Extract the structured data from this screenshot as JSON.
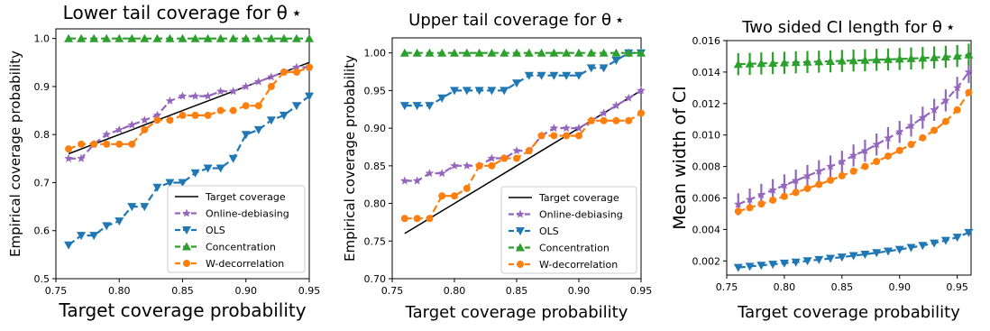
{
  "colors": {
    "target": "#000000",
    "online": "#9467bd",
    "ols": "#1f77b4",
    "concentration": "#2ca02c",
    "wdecorrelation": "#ff7f0e"
  },
  "chart_data": [
    {
      "type": "line",
      "title": "Lower tail coverage for θ ⋆",
      "xlabel": "Target coverage probability",
      "ylabel": "Empirical coverage probability",
      "xlim": [
        0.75,
        0.95
      ],
      "ylim": [
        0.5,
        1.02
      ],
      "xticks": [
        "0.75",
        "0.80",
        "0.85",
        "0.90",
        "0.95"
      ],
      "yticks": [
        "0.5",
        "0.6",
        "0.7",
        "0.8",
        "0.9",
        "1.0"
      ],
      "grid": false,
      "legend": "bottom-right",
      "x": [
        0.76,
        0.77,
        0.78,
        0.79,
        0.8,
        0.81,
        0.82,
        0.83,
        0.84,
        0.85,
        0.86,
        0.87,
        0.88,
        0.89,
        0.9,
        0.91,
        0.92,
        0.93,
        0.94,
        0.95
      ],
      "series": [
        {
          "name": "Target coverage",
          "values": [
            0.76,
            0.77,
            0.78,
            0.79,
            0.8,
            0.81,
            0.82,
            0.83,
            0.84,
            0.85,
            0.86,
            0.87,
            0.88,
            0.89,
            0.9,
            0.91,
            0.92,
            0.93,
            0.94,
            0.95
          ]
        },
        {
          "name": "Online-debiasing",
          "values": [
            0.75,
            0.75,
            0.78,
            0.8,
            0.81,
            0.82,
            0.83,
            0.84,
            0.87,
            0.88,
            0.88,
            0.88,
            0.89,
            0.89,
            0.9,
            0.91,
            0.92,
            0.93,
            0.94,
            0.94
          ]
        },
        {
          "name": "OLS",
          "values": [
            0.57,
            0.59,
            0.59,
            0.61,
            0.62,
            0.65,
            0.65,
            0.69,
            0.7,
            0.7,
            0.72,
            0.73,
            0.73,
            0.75,
            0.8,
            0.81,
            0.83,
            0.84,
            0.86,
            0.88
          ]
        },
        {
          "name": "Concentration",
          "values": [
            1.0,
            1.0,
            1.0,
            1.0,
            1.0,
            1.0,
            1.0,
            1.0,
            1.0,
            1.0,
            1.0,
            1.0,
            1.0,
            1.0,
            1.0,
            1.0,
            1.0,
            1.0,
            1.0,
            1.0
          ]
        },
        {
          "name": "W-decorrelation",
          "values": [
            0.77,
            0.78,
            0.78,
            0.78,
            0.78,
            0.78,
            0.81,
            0.83,
            0.83,
            0.84,
            0.84,
            0.84,
            0.85,
            0.85,
            0.86,
            0.86,
            0.9,
            0.93,
            0.93,
            0.94
          ]
        }
      ]
    },
    {
      "type": "line",
      "title": "Upper tail coverage for θ ⋆",
      "xlabel": "Target coverage probability",
      "ylabel": "Empirical coverage probability",
      "xlim": [
        0.75,
        0.95
      ],
      "ylim": [
        0.7,
        1.02
      ],
      "xticks": [
        "0.75",
        "0.80",
        "0.85",
        "0.90",
        "0.95"
      ],
      "yticks": [
        "0.70",
        "0.75",
        "0.80",
        "0.85",
        "0.90",
        "0.95",
        "1.00"
      ],
      "grid": false,
      "legend": "bottom-right",
      "x": [
        0.76,
        0.77,
        0.78,
        0.79,
        0.8,
        0.81,
        0.82,
        0.83,
        0.84,
        0.85,
        0.86,
        0.87,
        0.88,
        0.89,
        0.9,
        0.91,
        0.92,
        0.93,
        0.94,
        0.95
      ],
      "series": [
        {
          "name": "Target coverage",
          "values": [
            0.76,
            0.77,
            0.78,
            0.79,
            0.8,
            0.81,
            0.82,
            0.83,
            0.84,
            0.85,
            0.86,
            0.87,
            0.88,
            0.89,
            0.9,
            0.91,
            0.92,
            0.93,
            0.94,
            0.95
          ]
        },
        {
          "name": "Online-debiasing",
          "values": [
            0.83,
            0.83,
            0.84,
            0.84,
            0.85,
            0.85,
            0.85,
            0.86,
            0.86,
            0.87,
            0.87,
            0.89,
            0.9,
            0.9,
            0.9,
            0.91,
            0.92,
            0.93,
            0.94,
            0.95
          ]
        },
        {
          "name": "OLS",
          "values": [
            0.93,
            0.93,
            0.93,
            0.94,
            0.95,
            0.95,
            0.95,
            0.95,
            0.95,
            0.96,
            0.97,
            0.97,
            0.97,
            0.97,
            0.97,
            0.98,
            0.98,
            0.99,
            1.0,
            1.0
          ]
        },
        {
          "name": "Concentration",
          "values": [
            1.0,
            1.0,
            1.0,
            1.0,
            1.0,
            1.0,
            1.0,
            1.0,
            1.0,
            1.0,
            1.0,
            1.0,
            1.0,
            1.0,
            1.0,
            1.0,
            1.0,
            1.0,
            1.0,
            1.0
          ]
        },
        {
          "name": "W-decorrelation",
          "values": [
            0.78,
            0.78,
            0.78,
            0.81,
            0.81,
            0.82,
            0.85,
            0.85,
            0.86,
            0.86,
            0.87,
            0.89,
            0.89,
            0.89,
            0.89,
            0.91,
            0.91,
            0.91,
            0.91,
            0.92
          ]
        }
      ]
    },
    {
      "type": "line",
      "title": "Two sided CI length for θ ⋆",
      "xlabel": "Target coverage probability",
      "ylabel": "Mean width of CI",
      "xlim": [
        0.75,
        0.962
      ],
      "ylim": [
        0.0011,
        0.016
      ],
      "xticks": [
        "0.75",
        "0.80",
        "0.85",
        "0.90",
        "0.95"
      ],
      "yticks": [
        "0.002",
        "0.004",
        "0.006",
        "0.008",
        "0.010",
        "0.012",
        "0.014",
        "0.016"
      ],
      "grid": false,
      "legend": "none",
      "x": [
        0.76,
        0.77,
        0.78,
        0.79,
        0.8,
        0.81,
        0.82,
        0.83,
        0.84,
        0.85,
        0.86,
        0.87,
        0.88,
        0.89,
        0.9,
        0.91,
        0.92,
        0.93,
        0.94,
        0.95,
        0.96
      ],
      "series": [
        {
          "name": "Online-debiasing",
          "values": [
            0.0056,
            0.0059,
            0.0062,
            0.0065,
            0.0068,
            0.0071,
            0.0074,
            0.0077,
            0.008,
            0.0083,
            0.0087,
            0.009,
            0.0094,
            0.0098,
            0.0102,
            0.0106,
            0.0111,
            0.0116,
            0.0122,
            0.013,
            0.014
          ],
          "errors": [
            0.0007,
            0.0007,
            0.0007,
            0.0007,
            0.0007,
            0.0007,
            0.0007,
            0.0007,
            0.0007,
            0.0007,
            0.0007,
            0.0007,
            0.0007,
            0.0007,
            0.0007,
            0.0007,
            0.0007,
            0.0007,
            0.0007,
            0.0007,
            0.0007
          ]
        },
        {
          "name": "OLS",
          "values": [
            0.00158,
            0.00165,
            0.00172,
            0.00178,
            0.00185,
            0.00192,
            0.002,
            0.00208,
            0.00216,
            0.00224,
            0.00233,
            0.00242,
            0.00252,
            0.00262,
            0.00273,
            0.00285,
            0.00298,
            0.00313,
            0.0033,
            0.0035,
            0.0038
          ],
          "errors": [
            0.0001,
            0.0001,
            0.0001,
            0.0001,
            0.0001,
            0.0001,
            0.0001,
            0.0001,
            0.0001,
            0.0001,
            0.0001,
            0.0001,
            0.0001,
            0.0001,
            0.0001,
            0.0001,
            0.0001,
            0.0001,
            0.0001,
            0.0001,
            0.0001
          ]
        },
        {
          "name": "Concentration",
          "values": [
            0.0145,
            0.01452,
            0.01455,
            0.01457,
            0.01459,
            0.01462,
            0.01464,
            0.01466,
            0.01468,
            0.01471,
            0.01473,
            0.01475,
            0.01478,
            0.0148,
            0.01483,
            0.01486,
            0.01489,
            0.01493,
            0.01497,
            0.01502,
            0.0151
          ],
          "errors": [
            0.0007,
            0.0007,
            0.0007,
            0.0007,
            0.0007,
            0.0007,
            0.0007,
            0.0007,
            0.0007,
            0.0007,
            0.0007,
            0.0007,
            0.0007,
            0.0007,
            0.0007,
            0.0007,
            0.0007,
            0.0007,
            0.0007,
            0.0007,
            0.0007
          ]
        },
        {
          "name": "W-decorrelation",
          "values": [
            0.00515,
            0.00538,
            0.00562,
            0.00586,
            0.0061,
            0.00635,
            0.0066,
            0.00686,
            0.00713,
            0.00741,
            0.0077,
            0.008,
            0.00832,
            0.00866,
            0.00902,
            0.0094,
            0.00982,
            0.0103,
            0.01086,
            0.0116,
            0.0127
          ],
          "errors": [
            0,
            0,
            0,
            0,
            0,
            0,
            0,
            0,
            0,
            0,
            0,
            0,
            0,
            0,
            0,
            0,
            0,
            0,
            0,
            0,
            0
          ]
        }
      ]
    }
  ]
}
